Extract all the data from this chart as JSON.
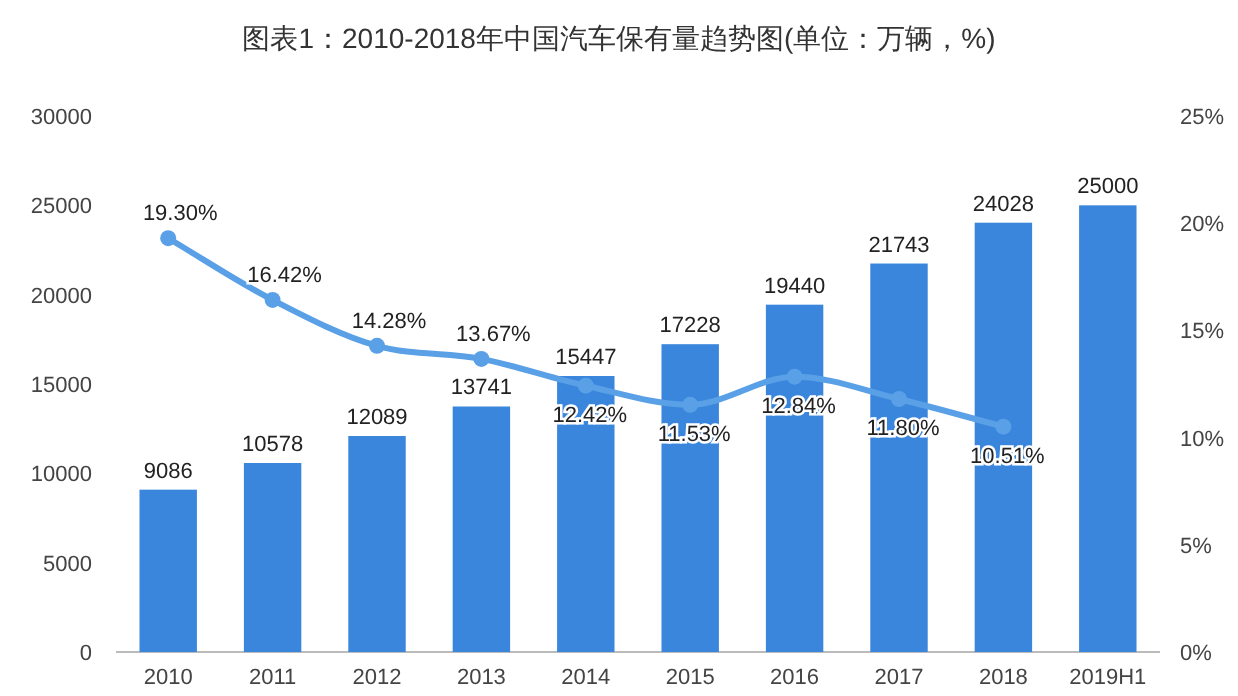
{
  "chart_data": {
    "type": "bar",
    "title": "图表1：2010-2018年中国汽车保有量趋势图(单位：万辆，%)",
    "categories": [
      "2010",
      "2011",
      "2012",
      "2013",
      "2014",
      "2015",
      "2016",
      "2017",
      "2018",
      "2019H1"
    ],
    "series": [
      {
        "color": "#3a86dc",
        "values": [
          9086,
          10578,
          12089,
          13741,
          15447,
          17228,
          19440,
          21743,
          24028,
          25000
        ],
        "value_labels": [
          "9086",
          "10578",
          "12089",
          "13741",
          "15447",
          "17228",
          "19440",
          "21743",
          "24028",
          "25000"
        ]
      },
      {
        "type": "line",
        "axis": "y2",
        "color": "#5aa0e6",
        "marker": "circle",
        "values": [
          19.3,
          16.42,
          14.28,
          13.67,
          12.42,
          11.53,
          12.84,
          11.8,
          10.51,
          null
        ],
        "value_labels": [
          "19.30%",
          "16.42%",
          "14.28%",
          "13.67%",
          "12.42%",
          "11.53%",
          "12.84%",
          "11.80%",
          "10.51%",
          null
        ]
      }
    ],
    "ylim": [
      0,
      30000
    ],
    "yticks": [
      0,
      5000,
      10000,
      15000,
      20000,
      25000,
      30000
    ],
    "y2lim": [
      0,
      25
    ],
    "y2ticks": [
      {
        "value": 0,
        "label": "0%"
      },
      {
        "value": 5,
        "label": "5%"
      },
      {
        "value": 10,
        "label": "10%"
      },
      {
        "value": 15,
        "label": "15%"
      },
      {
        "value": 20,
        "label": "20%"
      },
      {
        "value": 25,
        "label": "25%"
      }
    ],
    "grid": false
  }
}
